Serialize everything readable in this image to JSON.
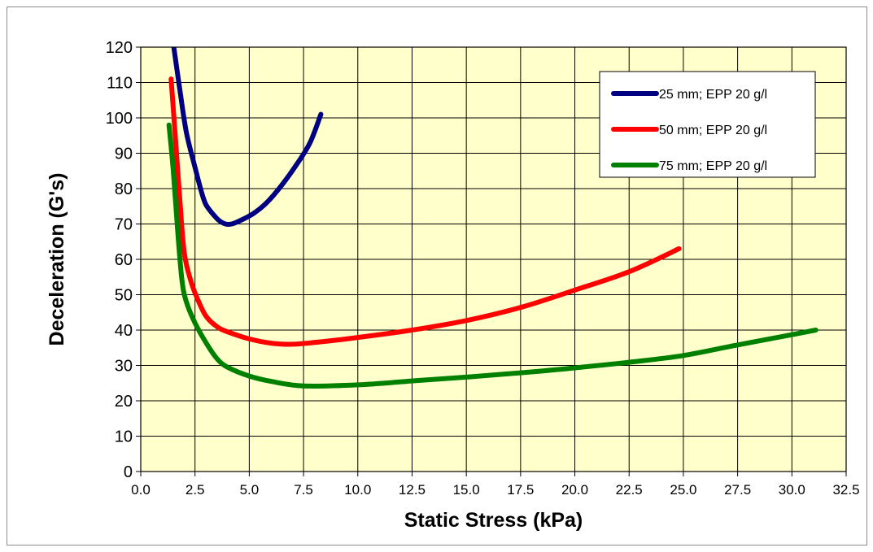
{
  "chart_data": {
    "type": "line",
    "title": "",
    "xlabel": "Static Stress (kPa)",
    "ylabel": "Deceleration (G's)",
    "xlim": [
      0,
      32.5
    ],
    "ylim": [
      0,
      120
    ],
    "xticks": [
      "0.0",
      "2.5",
      "5.0",
      "7.5",
      "10.0",
      "12.5",
      "15.0",
      "17.5",
      "20.0",
      "22.5",
      "25.0",
      "27.5",
      "30.0",
      "32.5"
    ],
    "yticks": [
      "0",
      "10",
      "20",
      "30",
      "40",
      "50",
      "60",
      "70",
      "80",
      "90",
      "100",
      "110",
      "120"
    ],
    "grid": true,
    "legend_position": "top-right",
    "plot_background": "#ffffcc",
    "series": [
      {
        "name": "25 mm; EPP 20 g/l",
        "color": "#000080",
        "points": [
          [
            1.5,
            121
          ],
          [
            1.8,
            108
          ],
          [
            2.1,
            96
          ],
          [
            2.5,
            86
          ],
          [
            2.8,
            79
          ],
          [
            3.0,
            75.5
          ],
          [
            3.3,
            73
          ],
          [
            3.6,
            71
          ],
          [
            3.9,
            70
          ],
          [
            4.2,
            70
          ],
          [
            4.6,
            71
          ],
          [
            5.2,
            73
          ],
          [
            5.8,
            76
          ],
          [
            6.5,
            81
          ],
          [
            7.2,
            87
          ],
          [
            7.8,
            93
          ],
          [
            8.3,
            101
          ]
        ]
      },
      {
        "name": "50 mm; EPP 20 g/l",
        "color": "#ff0000",
        "points": [
          [
            1.4,
            111
          ],
          [
            1.6,
            94
          ],
          [
            1.8,
            77
          ],
          [
            2.0,
            62
          ],
          [
            2.3,
            54
          ],
          [
            2.6,
            49
          ],
          [
            3.0,
            44
          ],
          [
            3.5,
            41
          ],
          [
            4.0,
            39.5
          ],
          [
            5.0,
            37.5
          ],
          [
            6.0,
            36.3
          ],
          [
            7.0,
            36
          ],
          [
            8.5,
            36.8
          ],
          [
            10.0,
            37.9
          ],
          [
            12.5,
            40
          ],
          [
            15.0,
            42.7
          ],
          [
            17.5,
            46.4
          ],
          [
            20.0,
            51.3
          ],
          [
            22.5,
            56.5
          ],
          [
            24.8,
            63
          ]
        ]
      },
      {
        "name": "75 mm; EPP 20 g/l",
        "color": "#008000",
        "points": [
          [
            1.3,
            98
          ],
          [
            1.5,
            85
          ],
          [
            1.7,
            68
          ],
          [
            1.9,
            54
          ],
          [
            2.1,
            48
          ],
          [
            2.5,
            42
          ],
          [
            3.0,
            36.5
          ],
          [
            3.5,
            32
          ],
          [
            4.0,
            29.5
          ],
          [
            5.0,
            27
          ],
          [
            6.0,
            25.5
          ],
          [
            7.5,
            24.2
          ],
          [
            10.0,
            24.5
          ],
          [
            12.5,
            25.6
          ],
          [
            15.0,
            26.7
          ],
          [
            17.5,
            27.9
          ],
          [
            20.0,
            29.3
          ],
          [
            22.5,
            30.9
          ],
          [
            25.0,
            32.8
          ],
          [
            27.5,
            35.8
          ],
          [
            30.0,
            38.7
          ],
          [
            31.1,
            40
          ]
        ]
      }
    ]
  }
}
